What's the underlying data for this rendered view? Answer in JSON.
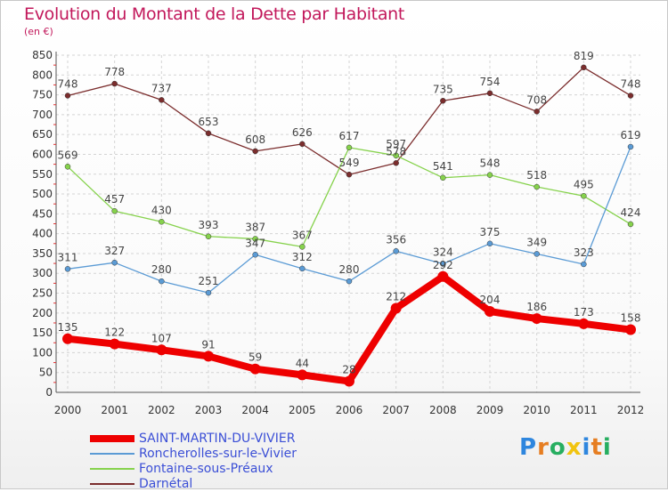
{
  "header": {
    "title": "Evolution du Montant de la Dette par Habitant",
    "subtitle": "(en €)"
  },
  "logo": {
    "text": "Proxiti",
    "colors": [
      "#2e86de",
      "#e67e22",
      "#27ae60",
      "#f1c40f"
    ]
  },
  "chart_data": {
    "type": "line",
    "title": "Evolution du Montant de la Dette par Habitant",
    "subtitle": "(en €)",
    "x": [
      2000,
      2001,
      2002,
      2003,
      2004,
      2005,
      2006,
      2007,
      2008,
      2009,
      2010,
      2011,
      2012
    ],
    "ylim": [
      0,
      850
    ],
    "yticks": [
      0,
      50,
      100,
      150,
      200,
      250,
      300,
      350,
      400,
      450,
      500,
      550,
      600,
      650,
      700,
      750,
      800,
      850
    ],
    "grid": true,
    "legend": "bottom-left",
    "series": [
      {
        "name": "SAINT-MARTIN-DU-VIVIER",
        "color": "#ee0000",
        "values": [
          135,
          122,
          107,
          91,
          59,
          44,
          28,
          212,
          292,
          204,
          186,
          173,
          158
        ]
      },
      {
        "name": "Roncherolles-sur-le-Vivier",
        "color": "#5b9bd5",
        "values": [
          311,
          327,
          280,
          251,
          347,
          312,
          280,
          356,
          324,
          375,
          349,
          323,
          619
        ]
      },
      {
        "name": "Fontaine-sous-Préaux",
        "color": "#86d24c",
        "values": [
          569,
          457,
          430,
          393,
          387,
          367,
          617,
          597,
          541,
          548,
          518,
          495,
          424
        ]
      },
      {
        "name": "Darnétal",
        "color": "#7b2d2d",
        "values": [
          748,
          778,
          737,
          653,
          608,
          626,
          549,
          578,
          735,
          754,
          708,
          819,
          748
        ]
      }
    ]
  }
}
